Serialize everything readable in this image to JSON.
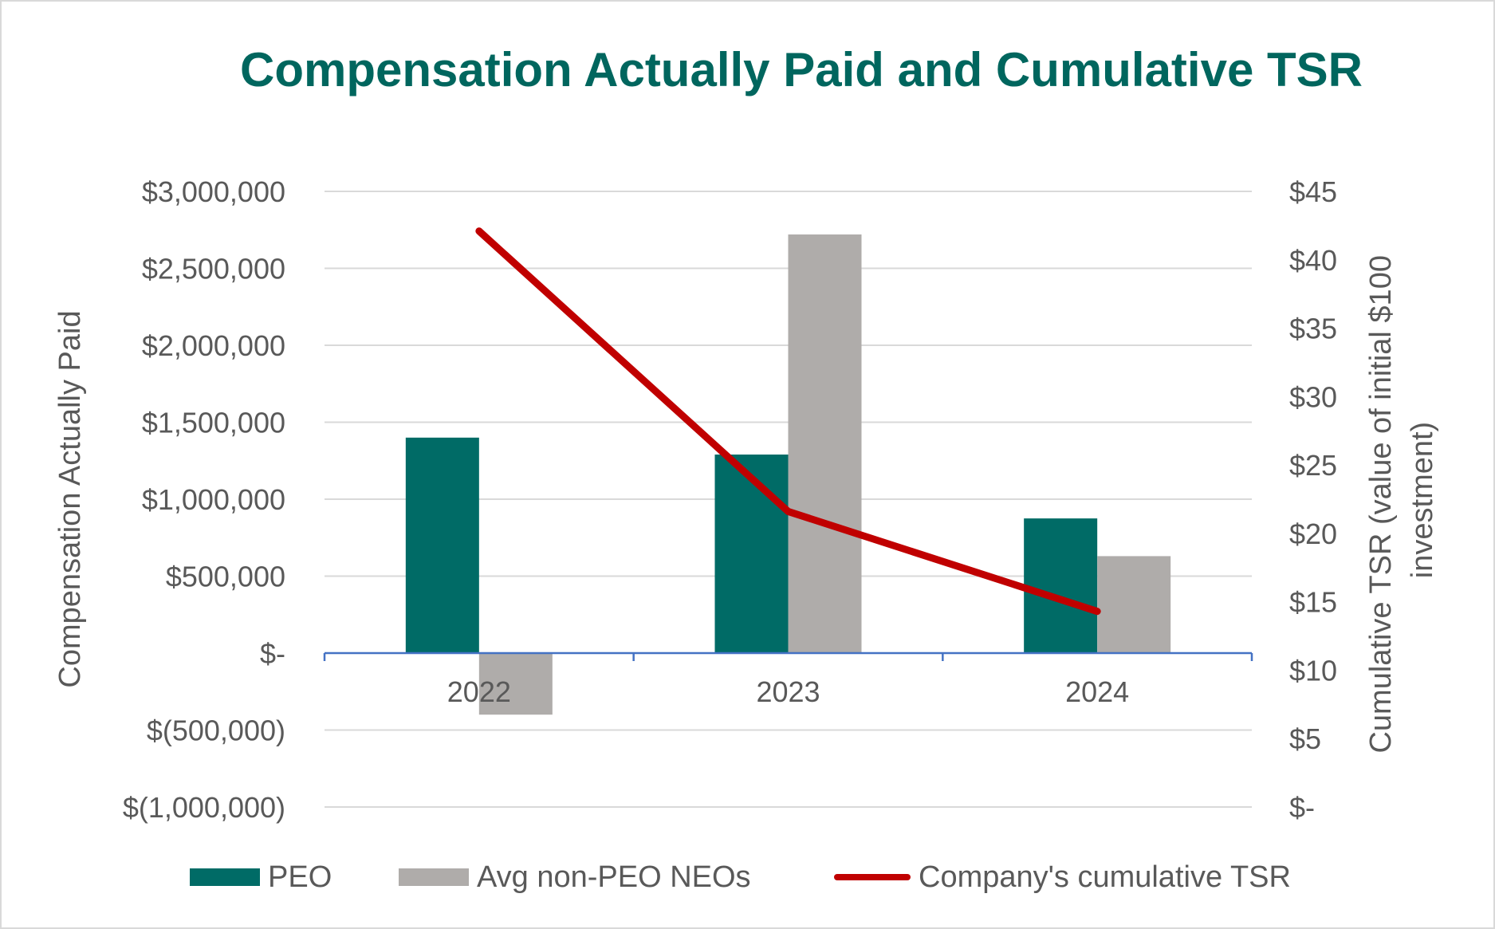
{
  "chart_data": {
    "type": "bar",
    "title": "Compensation Actually Paid and Cumulative TSR",
    "categories": [
      "2022",
      "2023",
      "2024"
    ],
    "series": [
      {
        "name": "PEO",
        "type": "bar",
        "axis": "left",
        "color": "#006b66",
        "values": [
          1400000,
          1290000,
          875000
        ]
      },
      {
        "name": "Avg non-PEO NEOs",
        "type": "bar",
        "axis": "left",
        "color": "#afacaa",
        "values": [
          -400000,
          2720000,
          630000
        ]
      },
      {
        "name": "Company's cumulative TSR",
        "type": "line",
        "axis": "right",
        "color": "#c00000",
        "values": [
          42.1,
          21.6,
          14.3
        ]
      }
    ],
    "y_left": {
      "label": "Compensation Actually Paid",
      "ylim": [
        -1000000,
        3000000
      ],
      "ticks": [
        3000000,
        2500000,
        2000000,
        1500000,
        1000000,
        500000,
        0,
        -500000,
        -1000000
      ],
      "tick_labels": [
        "$3,000,000",
        "$2,500,000",
        "$2,000,000",
        "$1,500,000",
        "$1,000,000",
        "$500,000",
        "$-",
        "$(500,000)",
        "$(1,000,000)"
      ]
    },
    "y_right": {
      "label_lines": [
        "Cumulative TSR (value of initial $100",
        "investment)"
      ],
      "ylim": [
        0,
        45
      ],
      "ticks": [
        45,
        40,
        35,
        30,
        25,
        20,
        15,
        10,
        5,
        0
      ],
      "tick_labels": [
        "$45",
        "$40",
        "$35",
        "$30",
        "$25",
        "$20",
        "$15",
        "$10",
        "$5",
        "$-"
      ]
    },
    "grid": true,
    "legend_position": "bottom",
    "colors": {
      "title": "#00665e",
      "axis_line": "#4472c4",
      "grid": "#d9d9d9",
      "text": "#595959"
    }
  }
}
